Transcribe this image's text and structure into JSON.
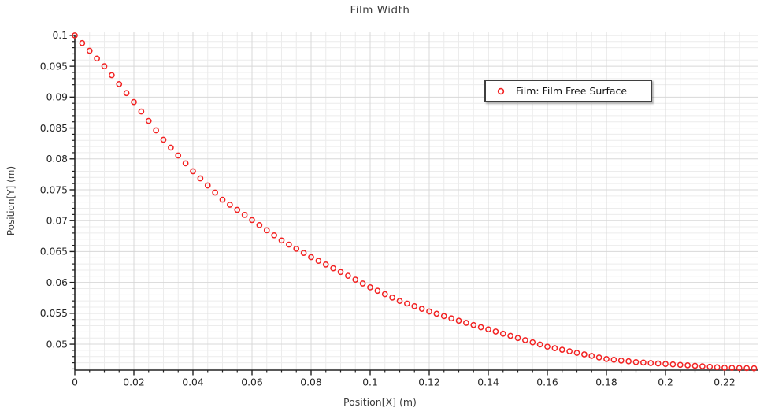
{
  "title": "Film Width",
  "xlabel": "Position[X] (m)",
  "ylabel": "Position[Y] (m)",
  "legend": {
    "label": "Film: Film Free Surface"
  },
  "colors": {
    "marker": "#f22222",
    "axis": "#222222",
    "grid_major": "#d8d8d8",
    "grid_minor": "#ececec",
    "tick_text": "#262626",
    "background": "#ffffff",
    "legend_border": "#3f3f3f"
  },
  "chart_data": {
    "type": "scatter",
    "title": "Film Width",
    "xlabel": "Position[X] (m)",
    "ylabel": "Position[Y] (m)",
    "grid": true,
    "legend_position": "upper-right-inside",
    "xlim": [
      0,
      0.2312
    ],
    "ylim": [
      0.0458,
      0.1005
    ],
    "x_ticks": [
      0,
      0.02,
      0.04,
      0.06,
      0.08,
      0.1,
      0.12,
      0.14,
      0.16,
      0.18,
      0.2,
      0.22
    ],
    "x_tick_labels": [
      "0",
      "0.02",
      "0.04",
      "0.06",
      "0.08",
      "0.1",
      "0.12",
      "0.14",
      "0.16",
      "0.18",
      "0.2",
      "0.22"
    ],
    "x_minor_step": 0.005,
    "y_ticks": [
      0.05,
      0.055,
      0.06,
      0.065,
      0.07,
      0.075,
      0.08,
      0.085,
      0.09,
      0.095,
      0.1
    ],
    "y_tick_labels": [
      "0.05",
      "0.055",
      "0.06",
      "0.065",
      "0.07",
      "0.075",
      "0.08",
      "0.085",
      "0.09",
      "0.095",
      "0.1"
    ],
    "y_minor_step": 0.001,
    "series": [
      {
        "name": "Film: Film Free Surface",
        "marker": "open-circle",
        "color": "#f22222",
        "x": [
          0,
          0.0025,
          0.005,
          0.0075,
          0.01,
          0.0125,
          0.015,
          0.0175,
          0.02,
          0.0225,
          0.025,
          0.0275,
          0.03,
          0.0325,
          0.035,
          0.0375,
          0.04,
          0.0425,
          0.045,
          0.0475,
          0.05,
          0.0525,
          0.055,
          0.0575,
          0.06,
          0.0625,
          0.065,
          0.0675,
          0.07,
          0.0725,
          0.075,
          0.0775,
          0.08,
          0.0825,
          0.085,
          0.0875,
          0.09,
          0.0925,
          0.095,
          0.0975,
          0.1,
          0.1025,
          0.105,
          0.1075,
          0.11,
          0.1125,
          0.115,
          0.1175,
          0.12,
          0.1225,
          0.125,
          0.1275,
          0.13,
          0.1325,
          0.135,
          0.1375,
          0.14,
          0.1425,
          0.145,
          0.1475,
          0.15,
          0.1525,
          0.155,
          0.1575,
          0.16,
          0.1625,
          0.165,
          0.1675,
          0.17,
          0.1725,
          0.175,
          0.1775,
          0.18,
          0.1825,
          0.185,
          0.1875,
          0.19,
          0.1925,
          0.195,
          0.1975,
          0.2,
          0.2025,
          0.205,
          0.2075,
          0.21,
          0.2125,
          0.215,
          0.2175,
          0.22,
          0.2225,
          0.225,
          0.2275,
          0.23
        ],
        "y": [
          0.1,
          0.09875,
          0.0975,
          0.09625,
          0.095,
          0.09355,
          0.0921,
          0.09065,
          0.0892,
          0.08768,
          0.08615,
          0.08463,
          0.0831,
          0.08183,
          0.08055,
          0.07928,
          0.078,
          0.07685,
          0.0757,
          0.07455,
          0.0734,
          0.07258,
          0.07175,
          0.07093,
          0.0701,
          0.06928,
          0.06845,
          0.06763,
          0.0668,
          0.06613,
          0.06545,
          0.06478,
          0.0641,
          0.0635,
          0.0629,
          0.0623,
          0.0617,
          0.06108,
          0.06045,
          0.05983,
          0.0592,
          0.05865,
          0.0581,
          0.05755,
          0.057,
          0.05658,
          0.05615,
          0.05573,
          0.0553,
          0.05493,
          0.05455,
          0.05418,
          0.0538,
          0.05345,
          0.0531,
          0.05275,
          0.0524,
          0.05205,
          0.0517,
          0.05135,
          0.051,
          0.05065,
          0.0503,
          0.04995,
          0.0496,
          0.04935,
          0.0491,
          0.04885,
          0.0486,
          0.04835,
          0.0481,
          0.04785,
          0.0476,
          0.04748,
          0.04735,
          0.04723,
          0.0471,
          0.04703,
          0.04695,
          0.04688,
          0.0468,
          0.04673,
          0.04665,
          0.04658,
          0.0465,
          0.04643,
          0.04635,
          0.04628,
          0.0462,
          0.04618,
          0.04615,
          0.04613,
          0.0461
        ]
      }
    ]
  }
}
